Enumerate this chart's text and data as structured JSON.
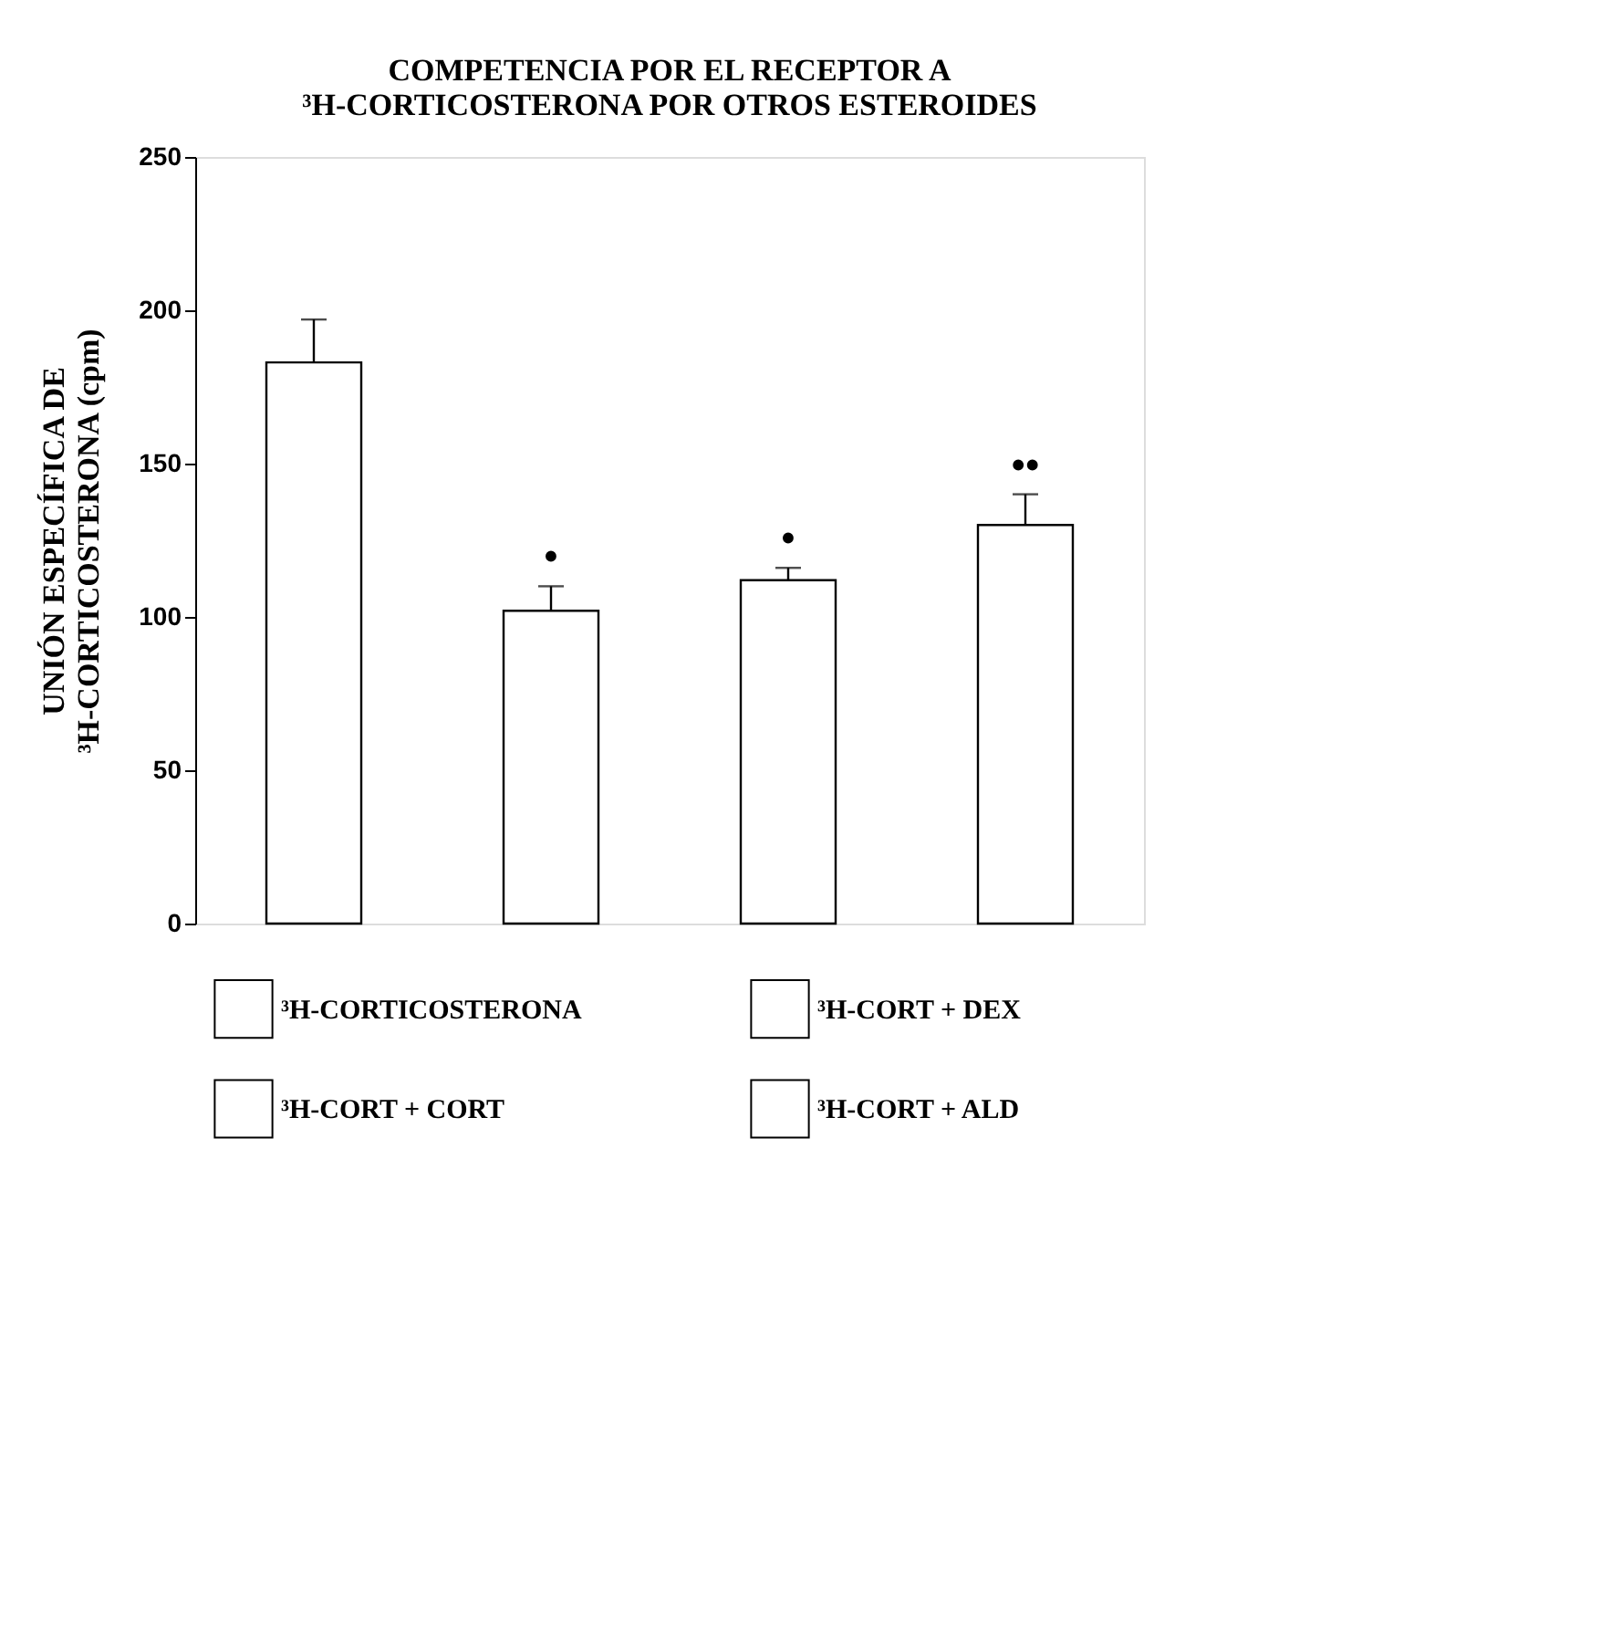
{
  "chart_data": {
    "type": "bar",
    "title": "COMPETENCIA POR EL RECEPTOR A\n³H-CORTICOSTERONA POR OTROS ESTEROIDES",
    "ylabel": "UNIÓN ESPECÍFICA DE\n³H-CORTICOSTERONA (cpm)",
    "categories": [
      null,
      null,
      null,
      null
    ],
    "stacked": true,
    "series": [
      {
        "name": "³H-CORTICOSTERONA",
        "color": "#ffffff",
        "values": [
          183,
          null,
          null,
          null
        ],
        "errors": [
          14,
          null,
          null,
          null
        ]
      },
      {
        "name": "³H-CORT + DEX",
        "color": "#ffffff",
        "values": [
          null,
          102,
          null,
          null
        ],
        "errors": [
          null,
          8,
          null,
          null
        ],
        "value_labels": [
          null,
          "•",
          null,
          null
        ]
      },
      {
        "name": "³H-CORT + CORT",
        "color": "#ffffff",
        "values": [
          null,
          null,
          112,
          null
        ],
        "errors": [
          null,
          null,
          4,
          null
        ],
        "value_labels": [
          null,
          null,
          "•",
          null
        ]
      },
      {
        "name": "³H-CORT + ALD",
        "color": "#ffffff",
        "values": [
          null,
          null,
          null,
          130
        ],
        "errors": [
          null,
          null,
          null,
          10
        ],
        "value_labels": [
          null,
          null,
          null,
          "••"
        ]
      }
    ],
    "ylim": [
      0,
      250
    ],
    "yticks": [
      0,
      50,
      100,
      150,
      200,
      250
    ],
    "grid": false,
    "legend": "bottom",
    "tick_labels": "y"
  }
}
